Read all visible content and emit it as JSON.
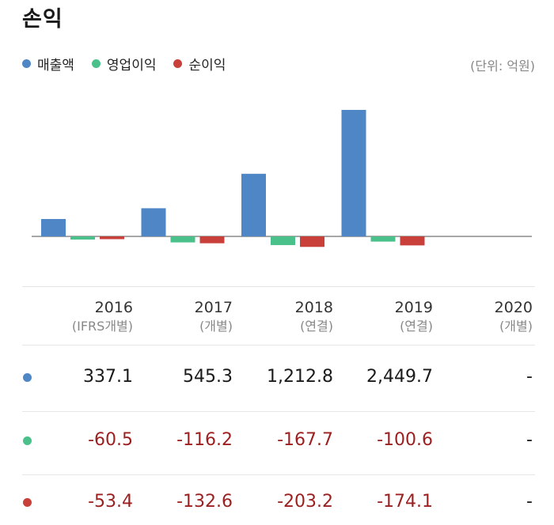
{
  "header": {
    "title": "손익",
    "unit": "(단위: 억원)"
  },
  "legend": [
    {
      "label": "매출액",
      "color": "#4f86c6"
    },
    {
      "label": "영업이익",
      "color": "#4ac08a"
    },
    {
      "label": "순이익",
      "color": "#c9403a"
    }
  ],
  "chart_data": {
    "type": "bar",
    "categories": [
      "2016",
      "2017",
      "2018",
      "2019",
      "2020"
    ],
    "category_subs": [
      "(IFRS개별)",
      "(개별)",
      "(연결)",
      "(연결)",
      "(개별)"
    ],
    "series": [
      {
        "name": "매출액",
        "color": "#4f86c6",
        "values": [
          337.1,
          545.3,
          1212.8,
          2449.7,
          null
        ]
      },
      {
        "name": "영업이익",
        "color": "#4ac08a",
        "values": [
          -60.5,
          -116.2,
          -167.7,
          -100.6,
          null
        ]
      },
      {
        "name": "순이익",
        "color": "#c9403a",
        "values": [
          -53.4,
          -132.6,
          -203.2,
          -174.1,
          null
        ]
      }
    ],
    "title": "손익",
    "xlabel": "",
    "ylabel": "",
    "grid": false
  },
  "table": {
    "rows": [
      {
        "series": "매출액",
        "color": "#4f86c6",
        "values": [
          "337.1",
          "545.3",
          "1,212.8",
          "2,449.7",
          "-"
        ]
      },
      {
        "series": "영업이익",
        "color": "#4ac08a",
        "values": [
          "-60.5",
          "-116.2",
          "-167.7",
          "-100.6",
          "-"
        ]
      },
      {
        "series": "순이익",
        "color": "#c9403a",
        "values": [
          "-53.4",
          "-132.6",
          "-203.2",
          "-174.1",
          "-"
        ]
      }
    ]
  }
}
